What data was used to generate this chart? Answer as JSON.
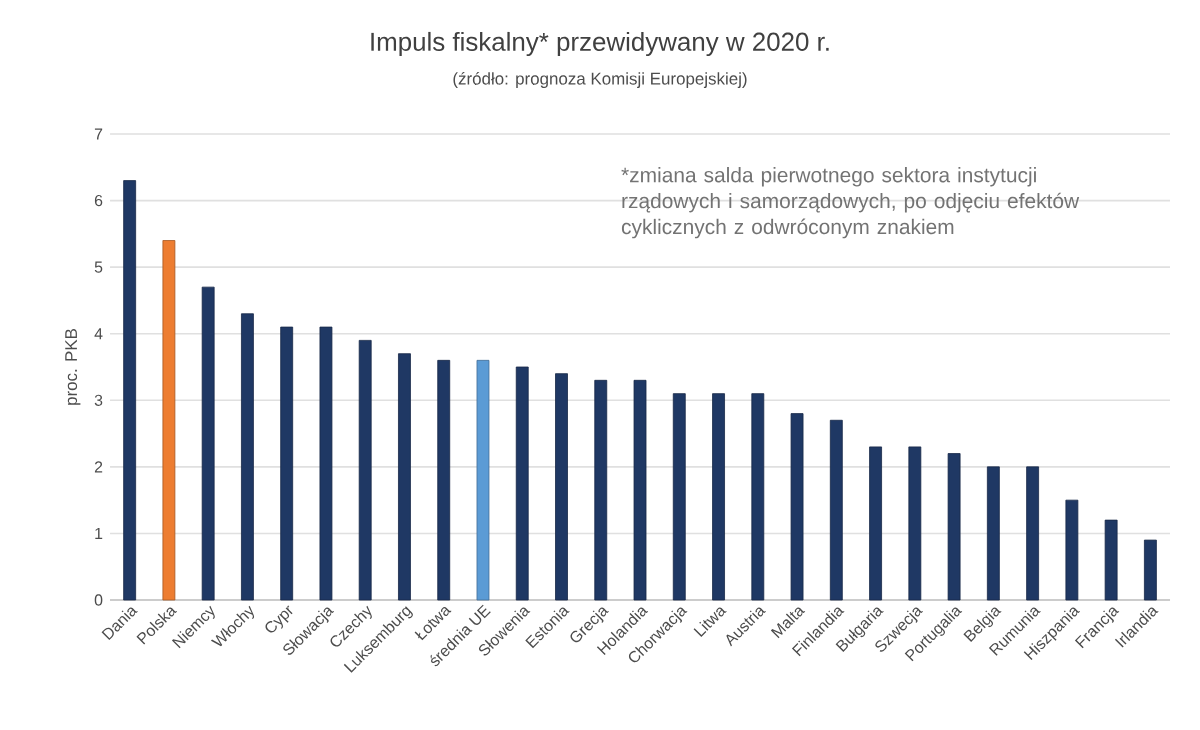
{
  "chart_data": {
    "type": "bar",
    "title": "Impuls fiskalny* przewidywany w 2020 r.",
    "subtitle": "(źródło: prognoza Komisji Europejskiej)",
    "ylabel": "proc. PKB",
    "categories": [
      "Dania",
      "Polska",
      "Niemcy",
      "Włochy",
      "Cypr",
      "Słowacja",
      "Czechy",
      "Luksemburg",
      "Łotwa",
      "średnia UE",
      "Słowenia",
      "Estonia",
      "Grecja",
      "Holandia",
      "Chorwacja",
      "Litwa",
      "Austria",
      "Malta",
      "Finlandia",
      "Bułgaria",
      "Szwecja",
      "Portugalia",
      "Belgia",
      "Rumunia",
      "Hiszpania",
      "Francja",
      "Irlandia"
    ],
    "values": [
      6.3,
      5.4,
      4.7,
      4.3,
      4.1,
      4.1,
      3.9,
      3.7,
      3.6,
      3.6,
      3.5,
      3.4,
      3.3,
      3.3,
      3.1,
      3.1,
      3.1,
      2.8,
      2.7,
      2.3,
      2.3,
      2.2,
      2.0,
      2.0,
      1.5,
      1.2,
      0.9
    ],
    "colors": [
      "#1f3864",
      "#ed7d31",
      "#1f3864",
      "#1f3864",
      "#1f3864",
      "#1f3864",
      "#1f3864",
      "#1f3864",
      "#1f3864",
      "#5b9bd5",
      "#1f3864",
      "#1f3864",
      "#1f3864",
      "#1f3864",
      "#1f3864",
      "#1f3864",
      "#1f3864",
      "#1f3864",
      "#1f3864",
      "#1f3864",
      "#1f3864",
      "#1f3864",
      "#1f3864",
      "#1f3864",
      "#1f3864",
      "#1f3864",
      "#1f3864"
    ],
    "ylim": [
      0,
      7
    ],
    "yticks": [
      0,
      1,
      2,
      3,
      4,
      5,
      6,
      7
    ],
    "grid": "y",
    "annotations": [
      "*zmiana salda pierwotnego sektora instytucji rządowych i samorządowych, po odjęciu efektów cyklicznych z odwróconym znakiem"
    ]
  }
}
